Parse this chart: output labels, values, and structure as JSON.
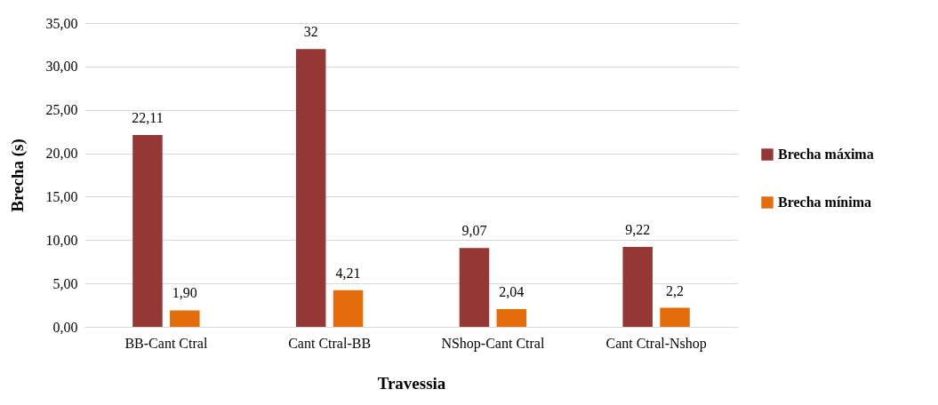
{
  "chart_data": {
    "type": "bar",
    "xlabel": "Travessia",
    "ylabel": "Brecha (s)",
    "categories": [
      "BB-Cant Ctral",
      "Cant Ctral-BB",
      "NShop-Cant Ctral",
      "Cant Ctral-Nshop"
    ],
    "series": [
      {
        "name": "Brecha máxima",
        "color": "#953735",
        "values": [
          22.11,
          32,
          9.07,
          9.22
        ],
        "value_labels": [
          "22,11",
          "32",
          "9,07",
          "9,22"
        ]
      },
      {
        "name": "Brecha mínima",
        "color": "#e46c0a",
        "values": [
          1.9,
          4.21,
          2.04,
          2.2
        ],
        "value_labels": [
          "1,90",
          "4,21",
          "2,04",
          "2,2"
        ]
      }
    ],
    "ylim": [
      0,
      35
    ],
    "yticks": [
      {
        "value": 0,
        "label": "0,00"
      },
      {
        "value": 5,
        "label": "5,00"
      },
      {
        "value": 10,
        "label": "10,00"
      },
      {
        "value": 15,
        "label": "15,00"
      },
      {
        "value": 20,
        "label": "20,00"
      },
      {
        "value": 25,
        "label": "25,00"
      },
      {
        "value": 30,
        "label": "30,00"
      },
      {
        "value": 35,
        "label": "35,00"
      }
    ],
    "grid": "y",
    "legend": "right"
  }
}
